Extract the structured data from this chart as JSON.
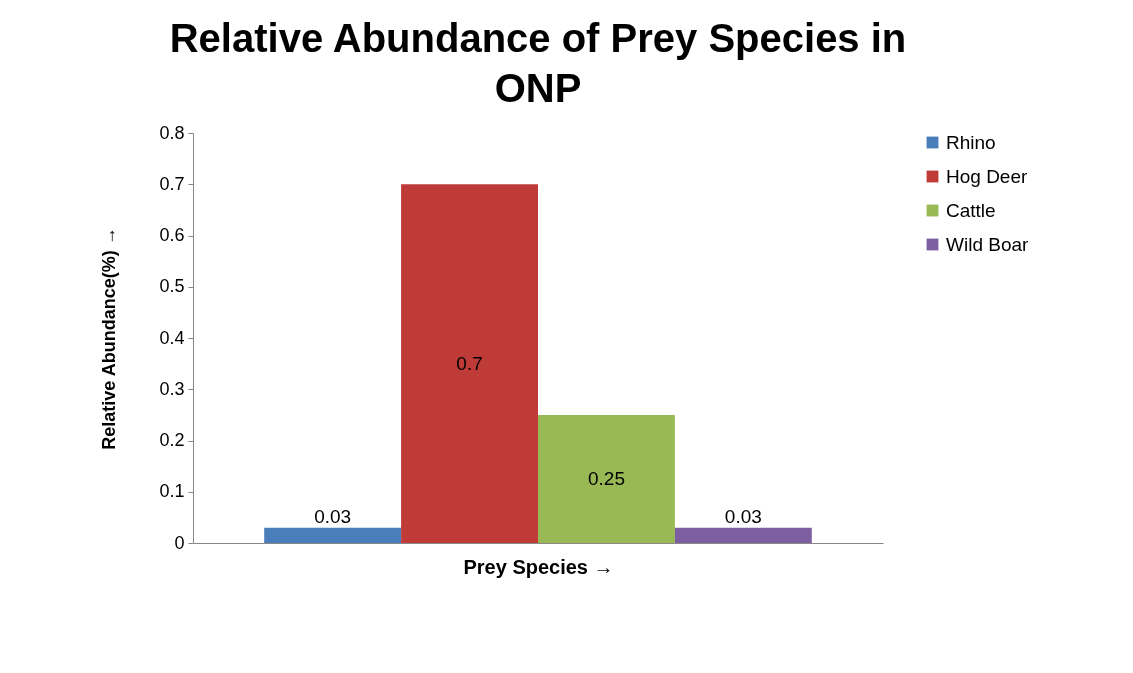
{
  "chart_data": {
    "type": "bar",
    "title": "Relative Abundance of Prey Species in ONP",
    "xlabel": "Prey Species    →",
    "ylabel": "Relative Abundance(%) →",
    "categories": [
      null
    ],
    "series": [
      {
        "name": "Rhino",
        "color": "#4a7ebb",
        "values": [
          0.03
        ]
      },
      {
        "name": "Hog Deer",
        "color": "#be3b38",
        "values": [
          0.7
        ]
      },
      {
        "name": "Cattle",
        "color": "#98b954",
        "values": [
          0.25
        ]
      },
      {
        "name": "Wild Boar",
        "color": "#7d5fa0",
        "values": [
          0.03
        ]
      }
    ],
    "ylim": [
      0,
      0.8
    ],
    "yticks": [
      0,
      0.1,
      0.2,
      0.3,
      0.4,
      0.5,
      0.6,
      0.7,
      0.8
    ],
    "data_labels": true,
    "grid": false,
    "legend": "right"
  }
}
